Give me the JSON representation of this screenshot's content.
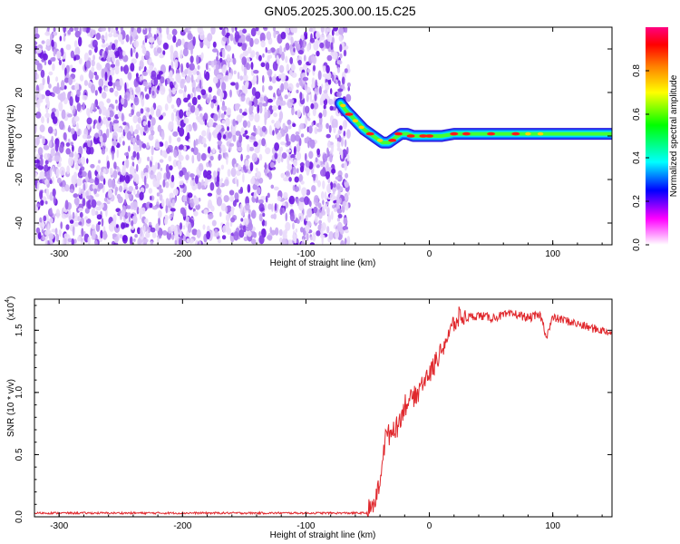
{
  "title": "GN05.2025.300.00.15.C25",
  "chart_data": [
    {
      "type": "heatmap",
      "name": "spectrogram",
      "xlabel": "Height of straight line (km)",
      "ylabel": "Frequency (Hz)",
      "xlim": [
        -320,
        148
      ],
      "ylim": [
        -50,
        50
      ],
      "xticks": [
        -300,
        -200,
        -100,
        0,
        100
      ],
      "xtick_labels": [
        "-300",
        "-200",
        "-100",
        "0",
        "100"
      ],
      "yticks": [
        -40,
        -20,
        0,
        20,
        40
      ],
      "ytick_labels": [
        "-40",
        "-20",
        "0",
        "20",
        "40"
      ],
      "noise_region_x": [
        -320,
        -65
      ],
      "signal_ridge": {
        "x": [
          -72,
          -68,
          -63,
          -58,
          -53,
          -48,
          -43,
          -38,
          -33,
          -28,
          -23,
          -18,
          -13,
          -8,
          -3,
          0,
          10,
          20,
          30,
          40,
          50,
          60,
          70,
          80,
          90,
          100,
          110,
          120,
          130,
          140,
          148
        ],
        "y": [
          15,
          12,
          9,
          6,
          3,
          1,
          -1,
          -3,
          -3,
          -1,
          1,
          1,
          0,
          0,
          0,
          0,
          0,
          1,
          1,
          1,
          1,
          1,
          1,
          1,
          1,
          1,
          1,
          1,
          1,
          1,
          1
        ]
      },
      "colorbar": {
        "label": "Normalized spectral amplitude",
        "range": [
          0,
          1
        ],
        "ticks": [
          0.0,
          0.2,
          0.4,
          0.6,
          0.8
        ],
        "tick_labels": [
          "0.0",
          "0.2",
          "0.4",
          "0.6",
          "0.8"
        ],
        "colormap": [
          "#ffffff",
          "#ff00ff",
          "#0000ff",
          "#00ffff",
          "#00ff00",
          "#ffff00",
          "#ff8000",
          "#ff0000",
          "#ff0080"
        ]
      },
      "grid": false
    },
    {
      "type": "line",
      "name": "snr",
      "xlabel": "Height of straight line (km)",
      "ylabel": "SNR (10 * v/v)",
      "multiplier": "(x10",
      "multiplier_exp": "4",
      "xlim": [
        -320,
        148
      ],
      "ylim": [
        0,
        1.75
      ],
      "xticks": [
        -300,
        -200,
        -100,
        0,
        100
      ],
      "xtick_labels": [
        "-300",
        "-200",
        "-100",
        "0",
        "100"
      ],
      "yticks": [
        0.0,
        0.5,
        1.0,
        1.5
      ],
      "ytick_labels": [
        "0.0",
        "0.5",
        "1.0",
        "1.5"
      ],
      "line_color": "#e0282d",
      "x": [
        -320,
        -100,
        -50,
        -45,
        -42,
        -40,
        -37,
        -35,
        -30,
        -25,
        -20,
        -15,
        -10,
        -5,
        0,
        5,
        10,
        15,
        20,
        25,
        30,
        40,
        50,
        60,
        70,
        80,
        90,
        95,
        100,
        110,
        120,
        130,
        140,
        148
      ],
      "y": [
        0.03,
        0.03,
        0.03,
        0.1,
        0.2,
        0.3,
        0.55,
        0.65,
        0.7,
        0.75,
        0.9,
        0.95,
        1.0,
        1.1,
        1.15,
        1.25,
        1.35,
        1.45,
        1.55,
        1.6,
        1.6,
        1.62,
        1.6,
        1.62,
        1.63,
        1.6,
        1.62,
        1.45,
        1.6,
        1.58,
        1.55,
        1.52,
        1.5,
        1.48
      ],
      "grid": false
    }
  ]
}
